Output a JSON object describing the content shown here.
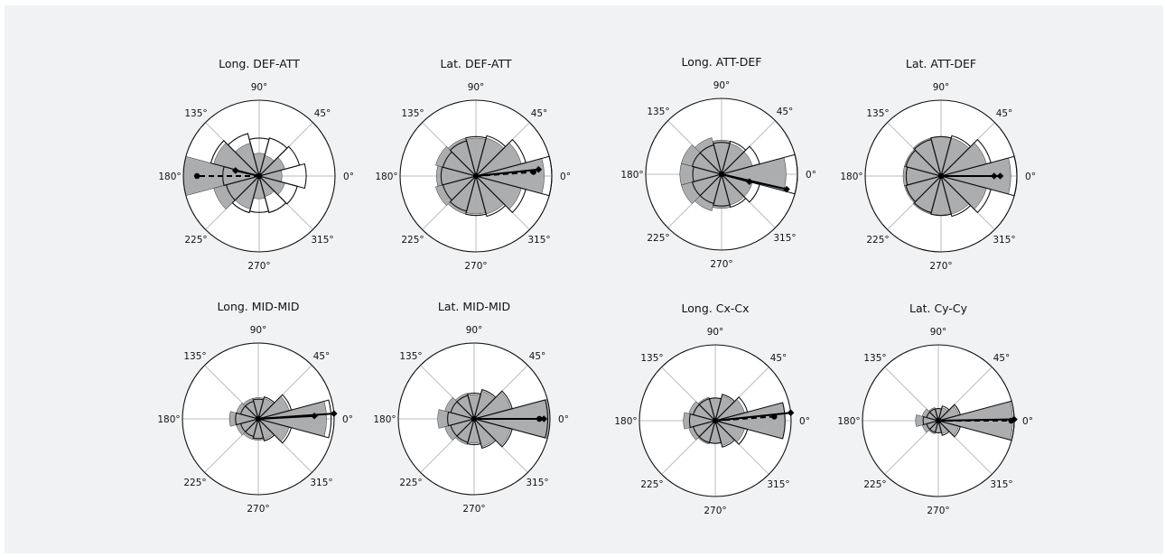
{
  "colors": {
    "background": "#f1f2f4",
    "disk": "#ffffff",
    "grid": "#bdbdbd",
    "outline": "#111111",
    "filled_wedge": "#a7a9ab",
    "filled_wedge_edge": "#333333",
    "mean_vector": "#000000"
  },
  "chart_data": [
    {
      "type": "polar-bar",
      "title": "Long. DEF-ATT",
      "angle_labels": [
        "0°",
        "45°",
        "90°",
        "135°",
        "180°",
        "225°",
        "270°",
        "315°"
      ],
      "bin_width_deg": 30,
      "radial_max": 1,
      "filled_series": {
        "directions_deg": [
          0,
          30,
          60,
          90,
          120,
          150,
          180,
          210,
          240,
          270,
          300,
          330
        ],
        "values": [
          0.3,
          0.35,
          0.28,
          0.3,
          0.45,
          0.62,
          1.0,
          0.62,
          0.45,
          0.3,
          0.28,
          0.35
        ]
      },
      "outline_series": {
        "directions_deg": [
          0,
          30,
          60,
          90,
          120,
          150,
          180,
          210,
          240,
          270,
          300,
          330
        ],
        "values": [
          0.62,
          0.55,
          0.52,
          0.5,
          0.58,
          0.66,
          0.48,
          0.45,
          0.5,
          0.48,
          0.5,
          0.52
        ]
      },
      "mean_vectors": [
        {
          "style": "dashed",
          "angle_deg": 180,
          "length": 0.82
        },
        {
          "style": "solid",
          "angle_deg": 167,
          "length": 0.32
        }
      ]
    },
    {
      "type": "polar-bar",
      "title": "Lat. DEF-ATT",
      "angle_labels": [
        "0°",
        "45°",
        "90°",
        "135°",
        "180°",
        "225°",
        "270°",
        "315°"
      ],
      "bin_width_deg": 30,
      "radial_max": 1,
      "filled_series": {
        "directions_deg": [
          0,
          30,
          60,
          90,
          120,
          150,
          180,
          210,
          240,
          270,
          300,
          330
        ],
        "values": [
          0.9,
          0.62,
          0.52,
          0.5,
          0.52,
          0.55,
          0.52,
          0.55,
          0.52,
          0.5,
          0.52,
          0.62
        ]
      },
      "outline_series": {
        "directions_deg": [
          0,
          30,
          60,
          90,
          120,
          150,
          180,
          210,
          240,
          270,
          300,
          330
        ],
        "values": [
          1.0,
          0.68,
          0.55,
          0.52,
          0.48,
          0.45,
          0.46,
          0.45,
          0.48,
          0.52,
          0.55,
          0.68
        ]
      },
      "mean_vectors": [
        {
          "style": "dashed",
          "angle_deg": 4,
          "length": 0.76
        },
        {
          "style": "solid",
          "angle_deg": 6,
          "length": 0.83
        }
      ]
    },
    {
      "type": "polar-bar",
      "title": "Long. ATT-DEF",
      "angle_labels": [
        "0°",
        "45°",
        "90°",
        "135°",
        "180°",
        "225°",
        "270°",
        "315°"
      ],
      "bin_width_deg": 30,
      "radial_max": 1,
      "filled_series": {
        "directions_deg": [
          0,
          30,
          60,
          90,
          120,
          150,
          180,
          210,
          240,
          270,
          300,
          330
        ],
        "values": [
          0.85,
          0.42,
          0.42,
          0.45,
          0.5,
          0.55,
          0.55,
          0.55,
          0.5,
          0.45,
          0.42,
          0.42
        ]
      },
      "outline_series": {
        "directions_deg": [
          0,
          30,
          60,
          90,
          120,
          150,
          180,
          210,
          240,
          270,
          300,
          330
        ],
        "values": [
          1.0,
          0.52,
          0.45,
          0.42,
          0.4,
          0.4,
          0.38,
          0.4,
          0.4,
          0.42,
          0.45,
          0.52
        ]
      },
      "mean_vectors": [
        {
          "style": "solid",
          "angle_deg": 345,
          "length": 0.38
        },
        {
          "style": "solid",
          "angle_deg": 347,
          "length": 0.88
        }
      ]
    },
    {
      "type": "polar-bar",
      "title": "Lat. ATT-DEF",
      "angle_labels": [
        "0°",
        "45°",
        "90°",
        "135°",
        "180°",
        "225°",
        "270°",
        "315°"
      ],
      "bin_width_deg": 30,
      "radial_max": 1,
      "filled_series": {
        "directions_deg": [
          0,
          30,
          60,
          90,
          120,
          150,
          180,
          210,
          240,
          270,
          300,
          330
        ],
        "values": [
          0.92,
          0.62,
          0.52,
          0.52,
          0.52,
          0.5,
          0.5,
          0.5,
          0.52,
          0.52,
          0.52,
          0.62
        ]
      },
      "outline_series": {
        "directions_deg": [
          0,
          30,
          60,
          90,
          120,
          150,
          180,
          210,
          240,
          270,
          300,
          330
        ],
        "values": [
          1.0,
          0.68,
          0.55,
          0.52,
          0.5,
          0.48,
          0.46,
          0.48,
          0.5,
          0.52,
          0.55,
          0.68
        ]
      },
      "mean_vectors": [
        {
          "style": "solid",
          "angle_deg": 0,
          "length": 0.7
        },
        {
          "style": "solid",
          "angle_deg": 0,
          "length": 0.78
        }
      ]
    },
    {
      "type": "polar-bar",
      "title": "Long. MID-MID",
      "angle_labels": [
        "0°",
        "45°",
        "90°",
        "135°",
        "180°",
        "225°",
        "270°",
        "315°"
      ],
      "bin_width_deg": 30,
      "radial_max": 1,
      "filled_series": {
        "directions_deg": [
          0,
          30,
          60,
          90,
          120,
          150,
          180,
          210,
          240,
          270,
          300,
          330
        ],
        "values": [
          0.9,
          0.42,
          0.28,
          0.28,
          0.28,
          0.3,
          0.38,
          0.3,
          0.28,
          0.28,
          0.28,
          0.42
        ]
      },
      "outline_series": {
        "directions_deg": [
          0,
          30,
          60,
          90,
          120,
          150,
          180,
          210,
          240,
          270,
          300,
          330
        ],
        "values": [
          0.96,
          0.45,
          0.3,
          0.26,
          0.24,
          0.24,
          0.3,
          0.24,
          0.24,
          0.26,
          0.3,
          0.45
        ]
      },
      "mean_vectors": [
        {
          "style": "solid",
          "angle_deg": 3,
          "length": 0.74
        },
        {
          "style": "solid",
          "angle_deg": 4,
          "length": 1.0
        }
      ]
    },
    {
      "type": "polar-bar",
      "title": "Lat. MID-MID",
      "angle_labels": [
        "0°",
        "45°",
        "90°",
        "135°",
        "180°",
        "225°",
        "270°",
        "315°"
      ],
      "bin_width_deg": 30,
      "radial_max": 1,
      "filled_series": {
        "directions_deg": [
          0,
          30,
          60,
          90,
          120,
          150,
          180,
          210,
          240,
          270,
          300,
          330
        ],
        "values": [
          1.0,
          0.5,
          0.38,
          0.32,
          0.35,
          0.4,
          0.48,
          0.4,
          0.35,
          0.32,
          0.38,
          0.5
        ]
      },
      "outline_series": {
        "directions_deg": [
          0,
          30,
          60,
          90,
          120,
          150,
          180,
          210,
          240,
          270,
          300,
          330
        ],
        "values": [
          0.97,
          0.52,
          0.4,
          0.34,
          0.32,
          0.32,
          0.35,
          0.32,
          0.32,
          0.34,
          0.4,
          0.52
        ]
      },
      "mean_vectors": [
        {
          "style": "dashed",
          "angle_deg": 0,
          "length": 0.86
        },
        {
          "style": "solid",
          "angle_deg": 0,
          "length": 0.92
        }
      ]
    },
    {
      "type": "polar-bar",
      "title": "Long. Cx-Cx",
      "angle_labels": [
        "0°",
        "45°",
        "90°",
        "135°",
        "180°",
        "225°",
        "270°",
        "315°"
      ],
      "bin_width_deg": 30,
      "radial_max": 1,
      "filled_series": {
        "directions_deg": [
          0,
          30,
          60,
          90,
          120,
          150,
          180,
          210,
          240,
          270,
          300,
          330
        ],
        "values": [
          0.92,
          0.4,
          0.34,
          0.3,
          0.32,
          0.36,
          0.42,
          0.36,
          0.32,
          0.3,
          0.34,
          0.4
        ]
      },
      "outline_series": {
        "directions_deg": [
          0,
          30,
          60,
          90,
          120,
          150,
          180,
          210,
          240,
          270,
          300,
          330
        ],
        "values": [
          0.92,
          0.44,
          0.36,
          0.3,
          0.3,
          0.3,
          0.34,
          0.3,
          0.3,
          0.3,
          0.36,
          0.44
        ]
      },
      "mean_vectors": [
        {
          "style": "dashed",
          "angle_deg": 4,
          "length": 0.78
        },
        {
          "style": "solid",
          "angle_deg": 6,
          "length": 1.0
        }
      ]
    },
    {
      "type": "polar-bar",
      "title": "Lat. Cy-Cy",
      "angle_labels": [
        "0°",
        "45°",
        "90°",
        "135°",
        "180°",
        "225°",
        "270°",
        "315°"
      ],
      "bin_width_deg": 30,
      "radial_max": 1,
      "filled_series": {
        "directions_deg": [
          0,
          30,
          60,
          90,
          120,
          150,
          180,
          210,
          240,
          270,
          300,
          330
        ],
        "values": [
          0.98,
          0.28,
          0.18,
          0.16,
          0.18,
          0.22,
          0.3,
          0.22,
          0.18,
          0.16,
          0.18,
          0.28
        ]
      },
      "outline_series": {
        "directions_deg": [
          0,
          30,
          60,
          90,
          120,
          150,
          180,
          210,
          240,
          270,
          300,
          330
        ],
        "values": [
          1.0,
          0.3,
          0.2,
          0.16,
          0.16,
          0.16,
          0.2,
          0.16,
          0.16,
          0.16,
          0.2,
          0.3
        ]
      },
      "mean_vectors": [
        {
          "style": "dashed",
          "angle_deg": 0,
          "length": 0.96
        },
        {
          "style": "solid",
          "angle_deg": 1,
          "length": 1.0
        }
      ]
    }
  ]
}
